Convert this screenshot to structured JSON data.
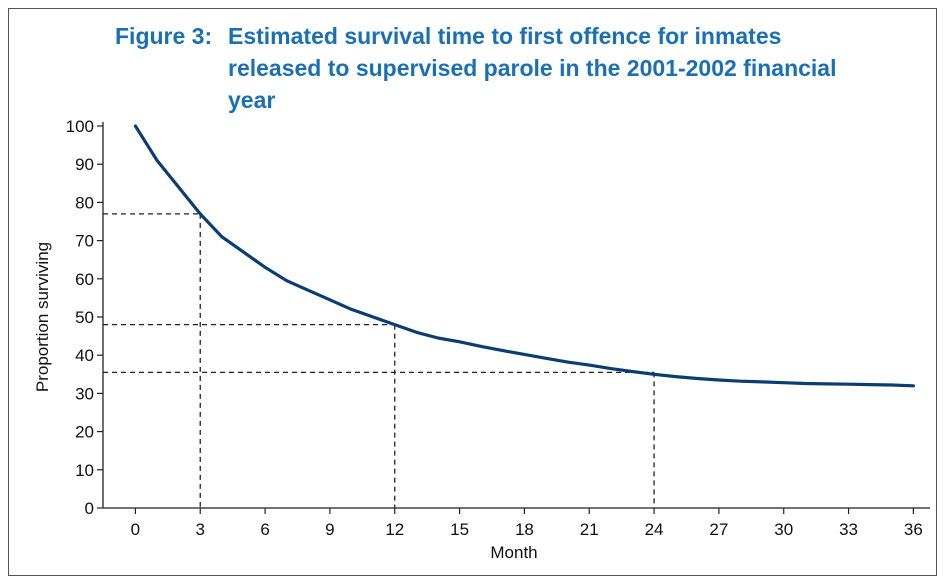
{
  "figure": {
    "label": "Figure 3:",
    "title": "Estimated survival time to first offence for inmates released to supervised parole in the 2001-2002 financial year"
  },
  "chart_data": {
    "type": "line",
    "xlabel": "Month",
    "ylabel": "Proportion surviving",
    "xlim": [
      -1.5,
      37
    ],
    "ylim": [
      0,
      100
    ],
    "x_ticks": [
      0,
      3,
      6,
      9,
      12,
      15,
      18,
      21,
      24,
      27,
      30,
      33,
      36
    ],
    "y_ticks": [
      0,
      10,
      20,
      30,
      40,
      50,
      60,
      70,
      80,
      90,
      100
    ],
    "grid": false,
    "series": [
      {
        "color": "#0b3d73",
        "x": [
          0,
          1,
          2,
          3,
          4,
          5,
          6,
          7,
          8,
          9,
          10,
          11,
          12,
          13,
          14,
          15,
          16,
          17,
          18,
          19,
          20,
          21,
          22,
          23,
          24,
          25,
          26,
          27,
          28,
          29,
          30,
          31,
          32,
          33,
          34,
          35,
          36
        ],
        "y": [
          100,
          91,
          84,
          77,
          71,
          67,
          63,
          59.5,
          57,
          54.5,
          52,
          50,
          48,
          46,
          44.5,
          43.5,
          42.3,
          41.2,
          40.2,
          39.2,
          38.2,
          37.4,
          36.5,
          35.7,
          35,
          34.4,
          33.9,
          33.5,
          33.2,
          33,
          32.8,
          32.6,
          32.5,
          32.4,
          32.3,
          32.2,
          32
        ]
      }
    ],
    "reference_lines": [
      {
        "x": 3,
        "y": 77
      },
      {
        "x": 12,
        "y": 48
      },
      {
        "x": 24,
        "y": 35.5
      }
    ]
  }
}
